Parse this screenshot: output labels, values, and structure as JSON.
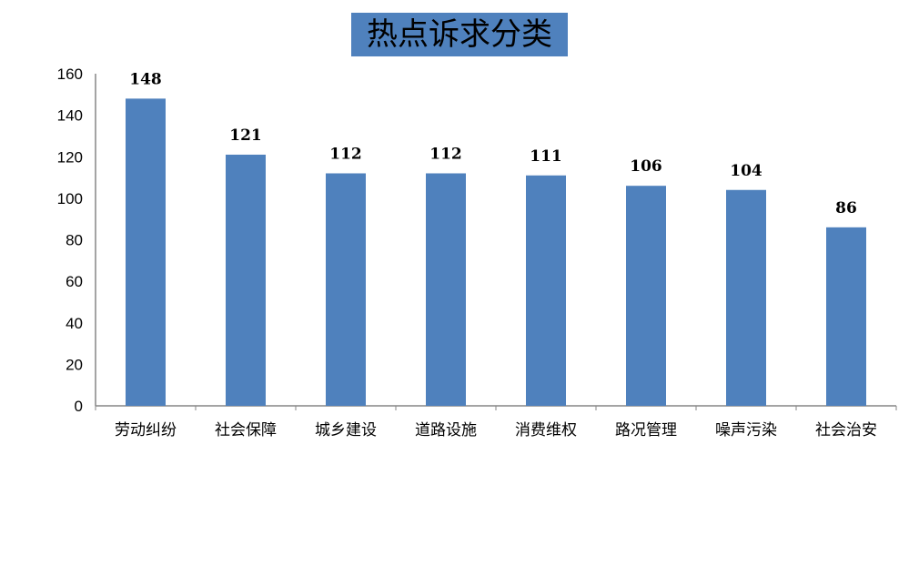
{
  "chart_data": {
    "type": "bar",
    "title": "热点诉求分类",
    "categories": [
      "劳动纠纷",
      "社会保障",
      "城乡建设",
      "道路设施",
      "消费维权",
      "路况管理",
      "噪声污染",
      "社会治安"
    ],
    "values": [
      148,
      121,
      112,
      112,
      111,
      106,
      104,
      86
    ],
    "xlabel": "",
    "ylabel": "",
    "ylim": [
      0,
      160
    ],
    "yticks": [
      0,
      20,
      40,
      60,
      80,
      100,
      120,
      140,
      160
    ],
    "grid": false,
    "legend": "none",
    "data_labels": true,
    "bar_color": "#4F81BD",
    "title_bg": "#4F81BD"
  }
}
